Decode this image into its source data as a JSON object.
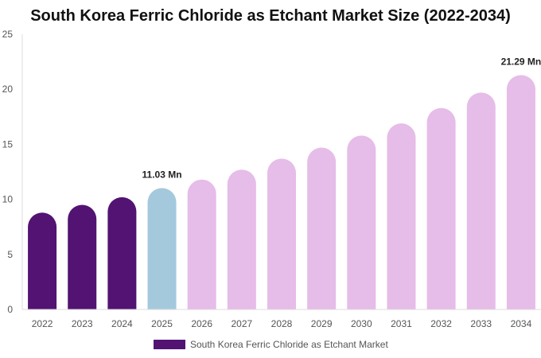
{
  "chart_data": {
    "type": "bar",
    "title": "South Korea Ferric Chloride as Etchant Market Size (2022-2034)",
    "xlabel": "",
    "ylabel": "",
    "categories": [
      "2022",
      "2023",
      "2024",
      "2025",
      "2026",
      "2027",
      "2028",
      "2029",
      "2030",
      "2031",
      "2032",
      "2033",
      "2034"
    ],
    "series": [
      {
        "name": "South Korea Ferric Chloride as Etchant Market",
        "values": [
          8.8,
          9.5,
          10.2,
          11.03,
          11.8,
          12.7,
          13.7,
          14.7,
          15.8,
          16.9,
          18.3,
          19.7,
          21.29
        ]
      }
    ],
    "ylim": [
      0,
      25
    ],
    "yticks": [
      0,
      5,
      10,
      15,
      20,
      25
    ],
    "data_labels": [
      {
        "index": 3,
        "text": "11.03 Mn"
      },
      {
        "index": 12,
        "text": "21.29 Mn"
      }
    ],
    "colors": {
      "historical": "#521373",
      "current": "#a4c9dd",
      "forecast": "#e6bce8",
      "legend": "#521373"
    },
    "bar_color_groups": [
      "historical",
      "historical",
      "historical",
      "current",
      "forecast",
      "forecast",
      "forecast",
      "forecast",
      "forecast",
      "forecast",
      "forecast",
      "forecast",
      "forecast"
    ],
    "grid": false,
    "legend": "bottom"
  }
}
